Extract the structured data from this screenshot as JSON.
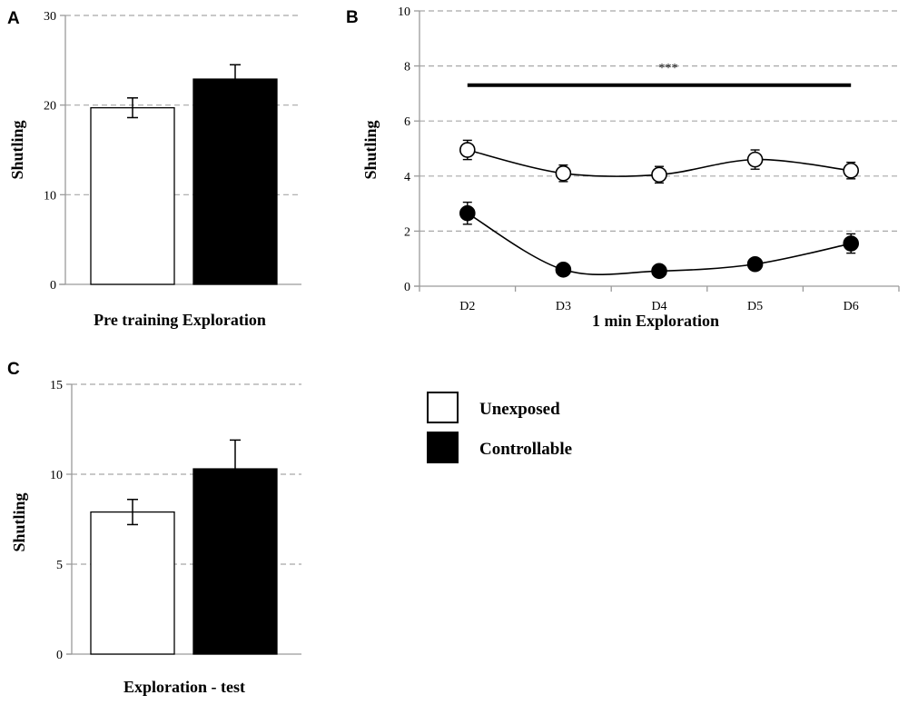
{
  "chart_data": [
    {
      "panel": "A",
      "type": "bar",
      "title": "",
      "xlabel": "Pre training Exploration",
      "ylabel": "Shutling",
      "ylim": [
        0,
        30
      ],
      "yticks": [
        "0",
        "10",
        "20",
        "30"
      ],
      "grid": true,
      "series": [
        {
          "name": "Unexposed",
          "value": 19.7,
          "error": 1.1,
          "color": "#ffffff"
        },
        {
          "name": "Controllable",
          "value": 22.9,
          "error": 1.6,
          "color": "#000000"
        }
      ]
    },
    {
      "panel": "B",
      "type": "line",
      "title": "",
      "xlabel": "1 min Exploration",
      "ylabel": "Shutling",
      "ylim": [
        0,
        10
      ],
      "yticks": [
        "0",
        "2",
        "4",
        "6",
        "8",
        "10"
      ],
      "categories": [
        "D2",
        "D3",
        "D4",
        "D5",
        "D6"
      ],
      "grid": true,
      "annotation": "***",
      "significance_line_y": 7.3,
      "series": [
        {
          "name": "Unexposed",
          "marker": "open-circle",
          "values": [
            4.95,
            4.1,
            4.05,
            4.6,
            4.2
          ],
          "errors": [
            0.35,
            0.3,
            0.3,
            0.35,
            0.3
          ]
        },
        {
          "name": "Controllable",
          "marker": "filled-circle",
          "values": [
            2.65,
            0.6,
            0.55,
            0.8,
            1.55
          ],
          "errors": [
            0.4,
            0.15,
            0.15,
            0.2,
            0.35
          ]
        }
      ]
    },
    {
      "panel": "C",
      "type": "bar",
      "title": "",
      "xlabel": "Exploration - test",
      "ylabel": "Shutling",
      "ylim": [
        0,
        15
      ],
      "yticks": [
        "0",
        "5",
        "10",
        "15"
      ],
      "grid": true,
      "series": [
        {
          "name": "Unexposed",
          "value": 7.9,
          "error": 0.7,
          "color": "#ffffff"
        },
        {
          "name": "Controllable",
          "value": 10.3,
          "error": 1.6,
          "color": "#000000"
        }
      ]
    }
  ],
  "legend": {
    "items": [
      {
        "label": "Unexposed",
        "fill": "#ffffff"
      },
      {
        "label": "Controllable",
        "fill": "#000000"
      }
    ]
  }
}
